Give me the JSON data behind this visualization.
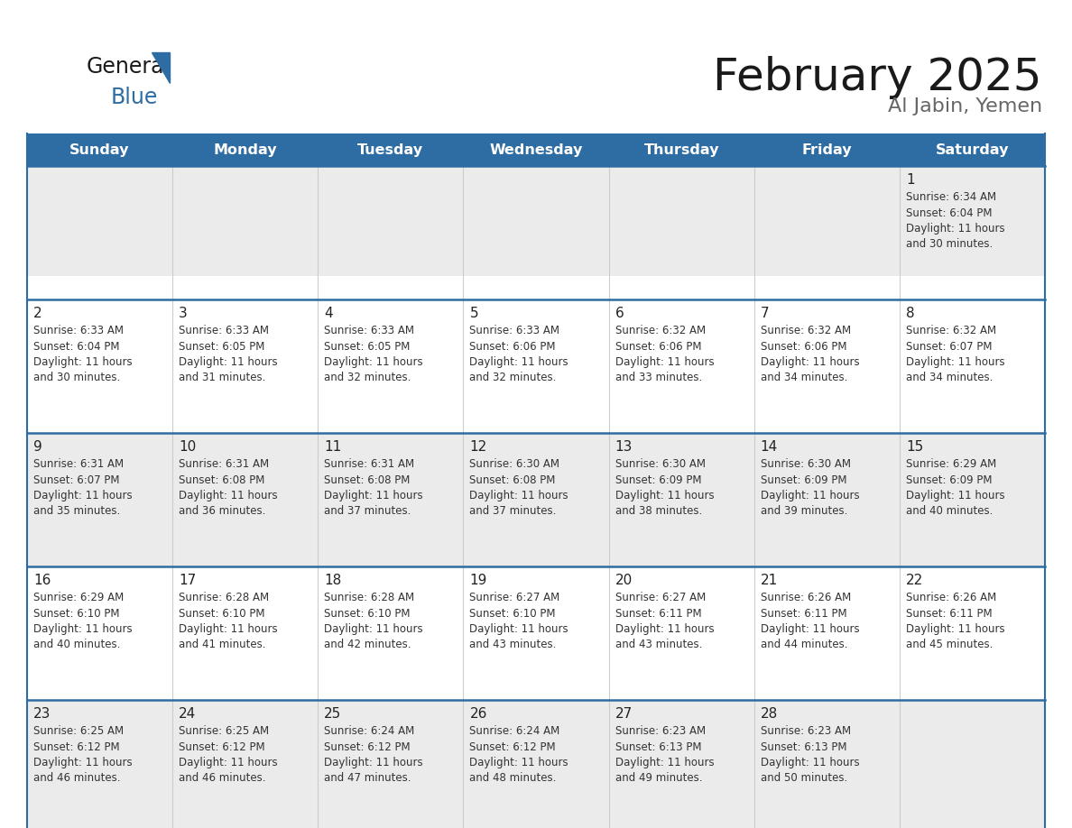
{
  "title": "February 2025",
  "subtitle": "Al Jabin, Yemen",
  "days_of_week": [
    "Sunday",
    "Monday",
    "Tuesday",
    "Wednesday",
    "Thursday",
    "Friday",
    "Saturday"
  ],
  "header_bg": "#2E6DA4",
  "header_text": "#FFFFFF",
  "row1_bg": "#EBEBEB",
  "row_bg": "#FFFFFF",
  "row_bg_alt": "#F5F5F5",
  "cell_border_color": "#2E6DA4",
  "day_number_color": "#222222",
  "info_text_color": "#333333",
  "title_color": "#1a1a1a",
  "subtitle_color": "#666666",
  "calendar_data": [
    [
      null,
      null,
      null,
      null,
      null,
      null,
      {
        "day": 1,
        "sunrise": "6:34 AM",
        "sunset": "6:04 PM",
        "daylight": "11 hours and 30 minutes."
      }
    ],
    [
      {
        "day": 2,
        "sunrise": "6:33 AM",
        "sunset": "6:04 PM",
        "daylight": "11 hours and 30 minutes."
      },
      {
        "day": 3,
        "sunrise": "6:33 AM",
        "sunset": "6:05 PM",
        "daylight": "11 hours and 31 minutes."
      },
      {
        "day": 4,
        "sunrise": "6:33 AM",
        "sunset": "6:05 PM",
        "daylight": "11 hours and 32 minutes."
      },
      {
        "day": 5,
        "sunrise": "6:33 AM",
        "sunset": "6:06 PM",
        "daylight": "11 hours and 32 minutes."
      },
      {
        "day": 6,
        "sunrise": "6:32 AM",
        "sunset": "6:06 PM",
        "daylight": "11 hours and 33 minutes."
      },
      {
        "day": 7,
        "sunrise": "6:32 AM",
        "sunset": "6:06 PM",
        "daylight": "11 hours and 34 minutes."
      },
      {
        "day": 8,
        "sunrise": "6:32 AM",
        "sunset": "6:07 PM",
        "daylight": "11 hours and 34 minutes."
      }
    ],
    [
      {
        "day": 9,
        "sunrise": "6:31 AM",
        "sunset": "6:07 PM",
        "daylight": "11 hours and 35 minutes."
      },
      {
        "day": 10,
        "sunrise": "6:31 AM",
        "sunset": "6:08 PM",
        "daylight": "11 hours and 36 minutes."
      },
      {
        "day": 11,
        "sunrise": "6:31 AM",
        "sunset": "6:08 PM",
        "daylight": "11 hours and 37 minutes."
      },
      {
        "day": 12,
        "sunrise": "6:30 AM",
        "sunset": "6:08 PM",
        "daylight": "11 hours and 37 minutes."
      },
      {
        "day": 13,
        "sunrise": "6:30 AM",
        "sunset": "6:09 PM",
        "daylight": "11 hours and 38 minutes."
      },
      {
        "day": 14,
        "sunrise": "6:30 AM",
        "sunset": "6:09 PM",
        "daylight": "11 hours and 39 minutes."
      },
      {
        "day": 15,
        "sunrise": "6:29 AM",
        "sunset": "6:09 PM",
        "daylight": "11 hours and 40 minutes."
      }
    ],
    [
      {
        "day": 16,
        "sunrise": "6:29 AM",
        "sunset": "6:10 PM",
        "daylight": "11 hours and 40 minutes."
      },
      {
        "day": 17,
        "sunrise": "6:28 AM",
        "sunset": "6:10 PM",
        "daylight": "11 hours and 41 minutes."
      },
      {
        "day": 18,
        "sunrise": "6:28 AM",
        "sunset": "6:10 PM",
        "daylight": "11 hours and 42 minutes."
      },
      {
        "day": 19,
        "sunrise": "6:27 AM",
        "sunset": "6:10 PM",
        "daylight": "11 hours and 43 minutes."
      },
      {
        "day": 20,
        "sunrise": "6:27 AM",
        "sunset": "6:11 PM",
        "daylight": "11 hours and 43 minutes."
      },
      {
        "day": 21,
        "sunrise": "6:26 AM",
        "sunset": "6:11 PM",
        "daylight": "11 hours and 44 minutes."
      },
      {
        "day": 22,
        "sunrise": "6:26 AM",
        "sunset": "6:11 PM",
        "daylight": "11 hours and 45 minutes."
      }
    ],
    [
      {
        "day": 23,
        "sunrise": "6:25 AM",
        "sunset": "6:12 PM",
        "daylight": "11 hours and 46 minutes."
      },
      {
        "day": 24,
        "sunrise": "6:25 AM",
        "sunset": "6:12 PM",
        "daylight": "11 hours and 46 minutes."
      },
      {
        "day": 25,
        "sunrise": "6:24 AM",
        "sunset": "6:12 PM",
        "daylight": "11 hours and 47 minutes."
      },
      {
        "day": 26,
        "sunrise": "6:24 AM",
        "sunset": "6:12 PM",
        "daylight": "11 hours and 48 minutes."
      },
      {
        "day": 27,
        "sunrise": "6:23 AM",
        "sunset": "6:13 PM",
        "daylight": "11 hours and 49 minutes."
      },
      {
        "day": 28,
        "sunrise": "6:23 AM",
        "sunset": "6:13 PM",
        "daylight": "11 hours and 50 minutes."
      },
      null
    ]
  ]
}
